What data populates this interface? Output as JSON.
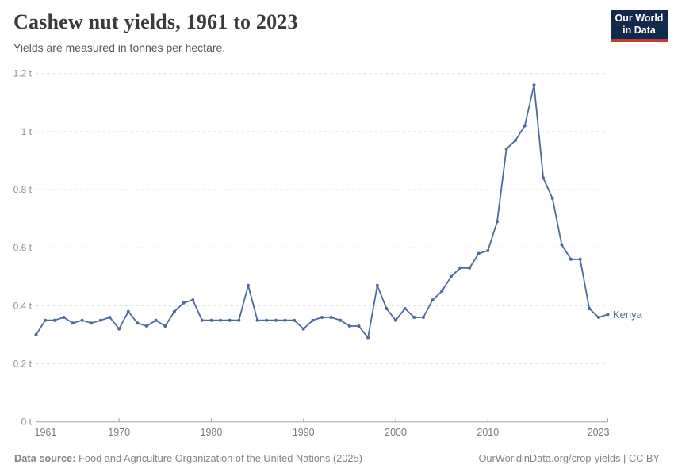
{
  "header": {
    "title": "Cashew nut yields, 1961 to 2023",
    "subtitle": "Yields are measured in tonnes per hectare.",
    "logo": {
      "line1": "Our World",
      "line2": "in Data"
    }
  },
  "chart_data": {
    "type": "line",
    "title": "Cashew nut yields, 1961 to 2023",
    "subtitle": "Yields are measured in tonnes per hectare.",
    "unit": "tonnes per hectare",
    "xlim": [
      1961,
      2023
    ],
    "ylim": [
      0,
      1.2
    ],
    "x_ticks": [
      1961,
      1970,
      1980,
      1990,
      2000,
      2010,
      2023
    ],
    "y_ticks": [
      0,
      0.2,
      0.4,
      0.6,
      0.8,
      1,
      1.2
    ],
    "y_tick_labels": [
      "0 t",
      "0.2 t",
      "0.4 t",
      "0.6 t",
      "0.8 t",
      "1 t",
      "1.2 t"
    ],
    "grid": "horizontal-dashed",
    "legend_position": "end-of-line-label",
    "series": [
      {
        "name": "Kenya",
        "color": "#4C6A9C",
        "x": [
          1961,
          1962,
          1963,
          1964,
          1965,
          1966,
          1967,
          1968,
          1969,
          1970,
          1971,
          1972,
          1973,
          1974,
          1975,
          1976,
          1977,
          1978,
          1979,
          1980,
          1981,
          1982,
          1983,
          1984,
          1985,
          1986,
          1987,
          1988,
          1989,
          1990,
          1991,
          1992,
          1993,
          1994,
          1995,
          1996,
          1997,
          1998,
          1999,
          2000,
          2001,
          2002,
          2003,
          2004,
          2005,
          2006,
          2007,
          2008,
          2009,
          2010,
          2011,
          2012,
          2013,
          2014,
          2015,
          2016,
          2017,
          2018,
          2019,
          2020,
          2021,
          2022,
          2023
        ],
        "values": [
          0.3,
          0.35,
          0.35,
          0.36,
          0.34,
          0.35,
          0.34,
          0.35,
          0.36,
          0.32,
          0.38,
          0.34,
          0.33,
          0.35,
          0.33,
          0.38,
          0.41,
          0.42,
          0.35,
          0.35,
          0.35,
          0.35,
          0.35,
          0.47,
          0.35,
          0.35,
          0.35,
          0.35,
          0.35,
          0.32,
          0.35,
          0.36,
          0.36,
          0.35,
          0.33,
          0.33,
          0.29,
          0.47,
          0.39,
          0.35,
          0.39,
          0.36,
          0.36,
          0.42,
          0.45,
          0.5,
          0.53,
          0.53,
          0.58,
          0.59,
          0.69,
          0.94,
          0.97,
          1.02,
          1.16,
          0.84,
          0.77,
          0.61,
          0.56,
          0.56,
          0.39,
          0.36,
          0.37
        ]
      }
    ]
  },
  "footer": {
    "source_label": "Data source:",
    "source_text": " Food and Agriculture Organization of the United Nations (2025)",
    "right_text": "OurWorldinData.org/crop-yields | CC BY"
  },
  "colors": {
    "line": "#4C6A9C",
    "grid": "#dedede",
    "axis": "#a3a3a3",
    "title": "#3a3a3a",
    "subtitle": "#555555",
    "footer": "#838383",
    "logo_bg": "#12294b",
    "logo_red": "#c73a2d"
  }
}
